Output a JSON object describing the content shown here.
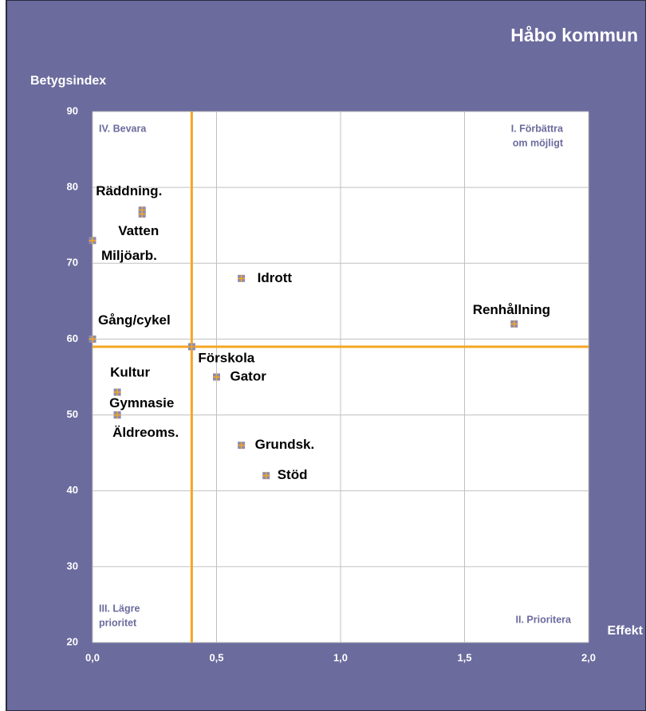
{
  "chart_data": {
    "type": "scatter",
    "title": "Håbo kommun",
    "ylabel": "Betygsindex",
    "xlabel": "Effekt",
    "points": [
      {
        "label": "Räddning.",
        "x": 0.2,
        "y": 77
      },
      {
        "label": "Vatten",
        "x": 0.2,
        "y": 76.5
      },
      {
        "label": "Miljöarb.",
        "x": 0.0,
        "y": 73
      },
      {
        "label": "Idrott",
        "x": 0.6,
        "y": 68
      },
      {
        "label": "Renhållning",
        "x": 1.7,
        "y": 62
      },
      {
        "label": "Gång/cykel",
        "x": 0.0,
        "y": 60
      },
      {
        "label": "Förskola",
        "x": 0.4,
        "y": 59
      },
      {
        "label": "Gator",
        "x": 0.5,
        "y": 55
      },
      {
        "label": "Kultur",
        "x": 0.1,
        "y": 53
      },
      {
        "label": "Gymnasie",
        "x": 0.1,
        "y": 50
      },
      {
        "label": "Äldreoms.",
        "x": 0.1,
        "y": 50
      },
      {
        "label": "Grundsk.",
        "x": 0.6,
        "y": 46
      },
      {
        "label": "Stöd",
        "x": 0.7,
        "y": 42
      }
    ],
    "marker_color": "#8c8cb0",
    "marker_cross_color": "#f5a623",
    "reference_lines": {
      "x": 0.4,
      "y": 59,
      "color": "#f5a623"
    },
    "quadrants": {
      "top_left": [
        "IV. Bevara"
      ],
      "top_right": [
        "I. Förbättra",
        "om möjligt"
      ],
      "bottom_left": [
        "III. Lägre",
        "prioritet"
      ],
      "bottom_right": [
        "II. Prioritera"
      ]
    },
    "xlim": [
      0,
      2
    ],
    "ylim": [
      20,
      90
    ],
    "xticks": [
      {
        "value": 0,
        "label": "0,0"
      },
      {
        "value": 0.5,
        "label": "0,5"
      },
      {
        "value": 1,
        "label": "1,0"
      },
      {
        "value": 1.5,
        "label": "1,5"
      },
      {
        "value": 2,
        "label": "2,0"
      }
    ],
    "yticks": [
      20,
      30,
      40,
      50,
      60,
      70,
      80,
      90
    ],
    "grid": true
  }
}
